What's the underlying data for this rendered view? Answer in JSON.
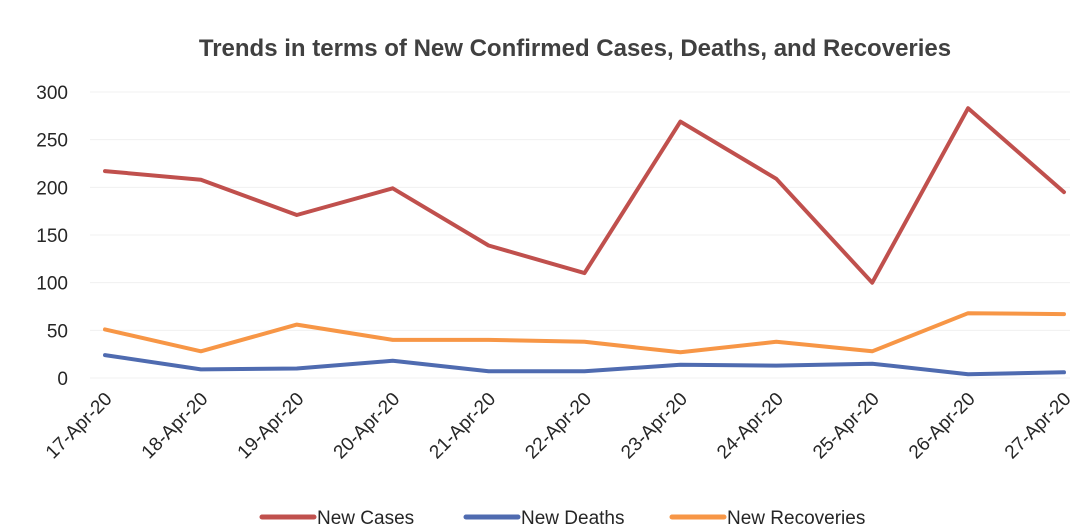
{
  "chart_data": {
    "type": "line",
    "title": "Trends in terms of New Confirmed Cases, Deaths, and Recoveries",
    "xlabel": "",
    "ylabel": "",
    "x": [
      "17-Apr-20",
      "18-Apr-20",
      "19-Apr-20",
      "20-Apr-20",
      "21-Apr-20",
      "22-Apr-20",
      "23-Apr-20",
      "24-Apr-20",
      "25-Apr-20",
      "26-Apr-20",
      "27-Apr-20"
    ],
    "ylim": [
      0,
      300
    ],
    "yticks": [
      0,
      50,
      100,
      150,
      200,
      250,
      300
    ],
    "grid": true,
    "legend_position": "bottom",
    "series": [
      {
        "name": "New Cases",
        "color": "#c0504d",
        "values": [
          217,
          208,
          171,
          199,
          139,
          110,
          269,
          209,
          100,
          283,
          195
        ]
      },
      {
        "name": "New Deaths",
        "color": "#4f6bb0",
        "values": [
          24,
          9,
          10,
          18,
          7,
          7,
          14,
          13,
          15,
          4,
          6
        ]
      },
      {
        "name": "New Recoveries",
        "color": "#f79646",
        "values": [
          51,
          28,
          56,
          40,
          40,
          38,
          27,
          38,
          28,
          68,
          67
        ]
      }
    ]
  }
}
